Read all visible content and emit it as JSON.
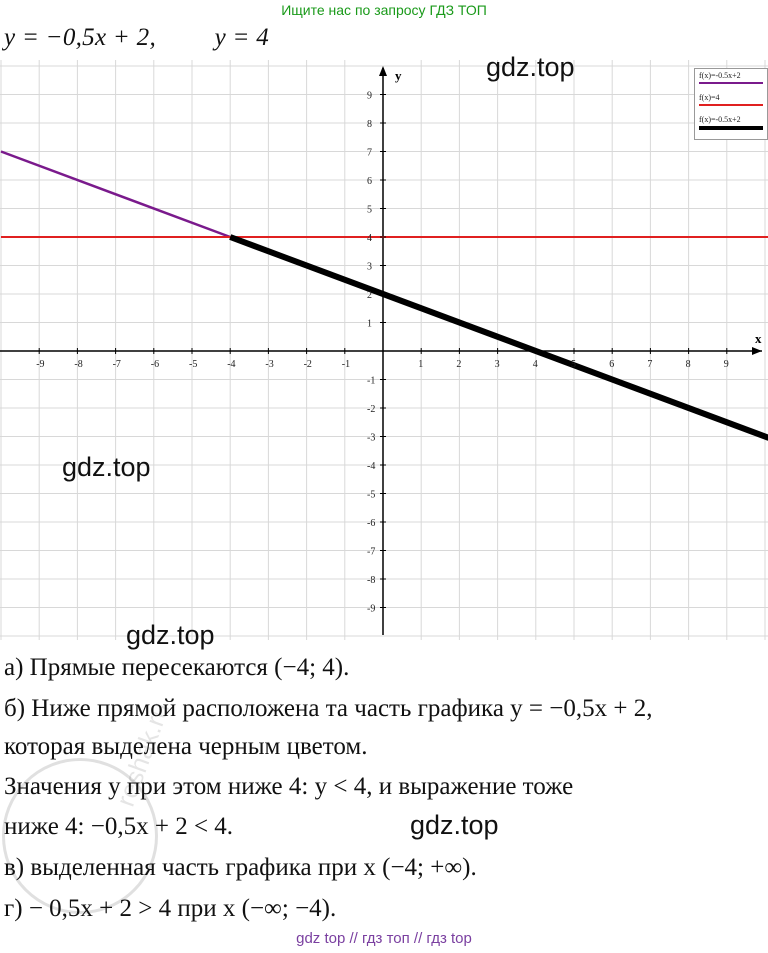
{
  "banner": "Ищите нас по запросу ГДЗ ТОП",
  "equations": {
    "eq1": "y = −0,5x + 2,",
    "eq2": "y = 4"
  },
  "watermarks": [
    "gdz.top",
    "gdz.top",
    "gdz.top",
    "gdz.top"
  ],
  "legend": [
    {
      "label": "f(x)=-0.5x+2",
      "color": "#7a1a8c"
    },
    {
      "label": "f(x)=4",
      "color": "#e02020"
    },
    {
      "label": "f(x)=-0.5x+2",
      "color": "#000000"
    }
  ],
  "chart_data": {
    "type": "line",
    "xlabel": "x",
    "ylabel": "y",
    "xlim": [
      -10,
      10
    ],
    "ylim": [
      -10,
      10
    ],
    "xticks": [
      "-9",
      "-8",
      "-7",
      "-6",
      "-5",
      "-4",
      "-3",
      "-2",
      "-1",
      "1",
      "2",
      "3",
      "4",
      "5",
      "6",
      "7",
      "8",
      "9"
    ],
    "yticks": [
      "9",
      "8",
      "7",
      "6",
      "5",
      "4",
      "3",
      "2",
      "1",
      "-1",
      "-2",
      "-3",
      "-4",
      "-5",
      "-6",
      "-7",
      "-8",
      "-9"
    ],
    "grid": true,
    "series": [
      {
        "name": "f(x)=-0.5x+2",
        "x": [
          -10,
          -4
        ],
        "y": [
          7,
          4
        ],
        "color": "#7a1a8c"
      },
      {
        "name": "f(x)=4",
        "x": [
          -10,
          10
        ],
        "y": [
          4,
          4
        ],
        "color": "#e02020"
      },
      {
        "name": "f(x)=-0.5x+2",
        "x": [
          -4,
          10
        ],
        "y": [
          4,
          -3
        ],
        "color": "#000000"
      }
    ]
  },
  "solution": {
    "a": "а) Прямые пересекаются (−4; 4).",
    "b1": "б) Ниже прямой расположена та часть графика y = −0,5x + 2,",
    "b2": "которая выделена черным цветом.",
    "b3": "Значения y при этом ниже 4: y < 4, и выражение тоже",
    "b4": "ниже 4:  −0,5x + 2 < 4.",
    "v": "в) выделенная часть графика при x (−4;  +∞).",
    "g": "г) − 0,5x + 2 > 4 при x (−∞;  −4)."
  },
  "stamp_text": "reshak.ru",
  "footer": "gdz top  //  гдз топ  //  гдз top"
}
